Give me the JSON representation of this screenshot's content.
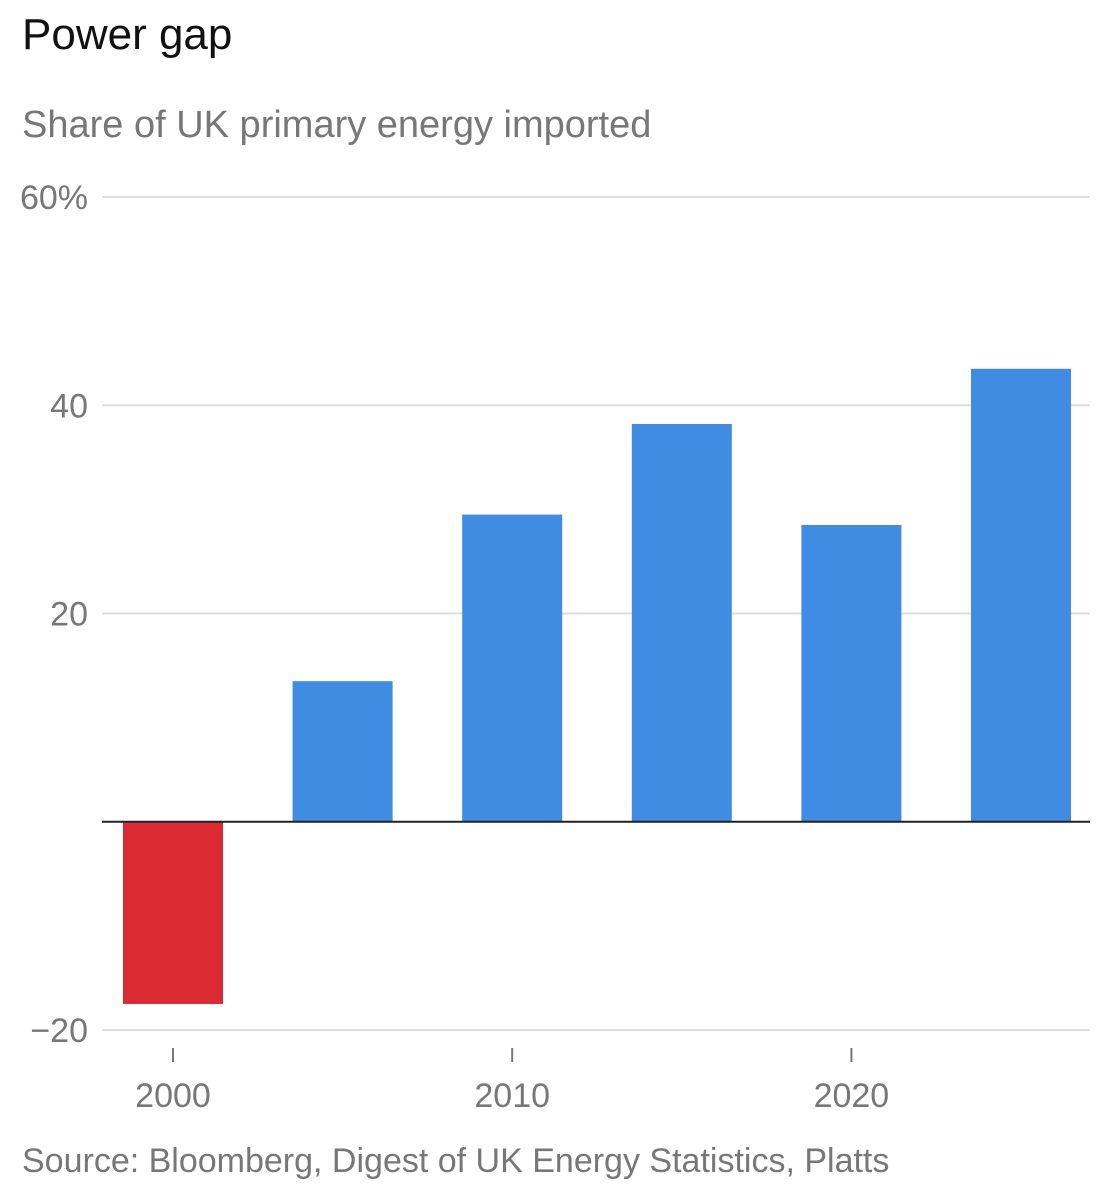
{
  "chart_data": {
    "type": "bar",
    "title": "Power gap",
    "subtitle": "Share of UK primary energy imported",
    "source": "Source: Bloomberg, Digest of UK Energy Statistics, Platts",
    "x": [
      2000,
      2005,
      2010,
      2015,
      2020,
      2025
    ],
    "values": [
      -17.5,
      13.5,
      29.5,
      38.2,
      28.5,
      43.5
    ],
    "colors": {
      "positive": "#3f8ce2",
      "negative": "#db2a32",
      "grid": "#dddddd",
      "zero_line": "#222222",
      "tick": "#777777"
    },
    "ylim": [
      -20,
      60
    ],
    "yticks": [
      {
        "value": 60,
        "label": "60%"
      },
      {
        "value": 40,
        "label": "40"
      },
      {
        "value": 20,
        "label": "20"
      },
      {
        "value": -20,
        "label": "−20"
      }
    ],
    "xticks": [
      {
        "value": 2000,
        "label": "2000"
      },
      {
        "value": 2010,
        "label": "2010"
      },
      {
        "value": 2020,
        "label": "2020"
      }
    ],
    "xlabel": "",
    "ylabel": "",
    "grid": true
  }
}
